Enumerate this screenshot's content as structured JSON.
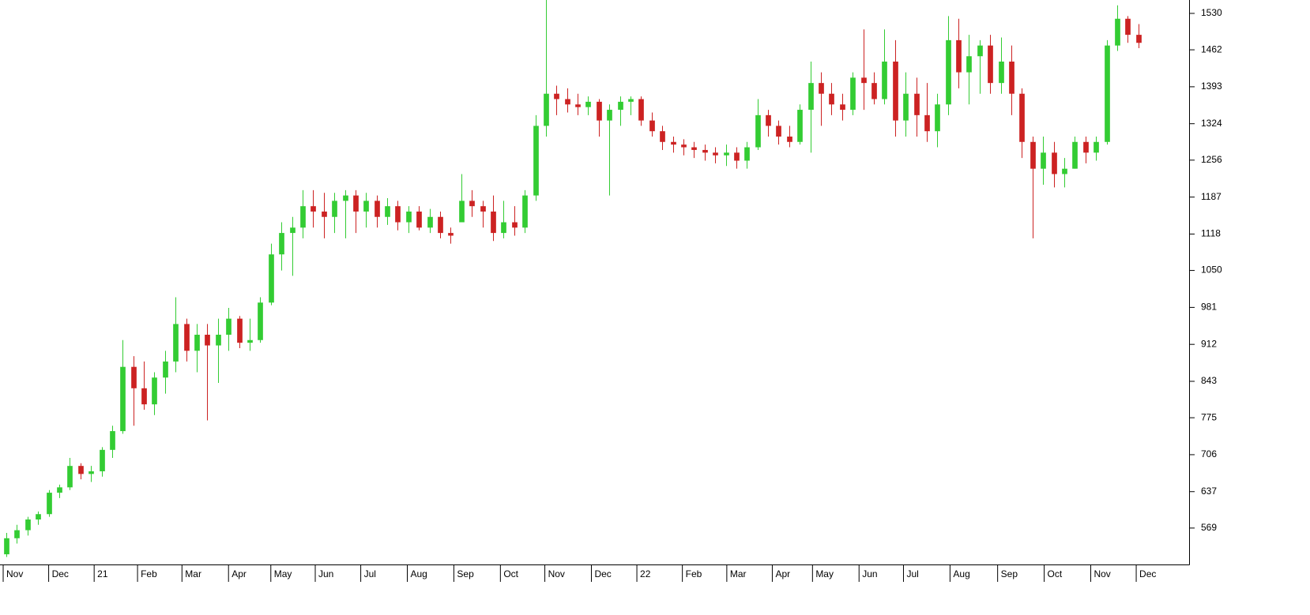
{
  "chart_data": {
    "type": "candlestick",
    "up_color": "#33cc33",
    "down_color": "#cc2222",
    "ylim": [
      501,
      1555
    ],
    "yticks": [
      569,
      637,
      706,
      775,
      843,
      912,
      981,
      1050,
      1118,
      1187,
      1256,
      1324,
      1393,
      1462,
      1530
    ],
    "xlim": [
      -0.6,
      111.8
    ],
    "xticks": [
      {
        "value": -0.3,
        "label": "Nov"
      },
      {
        "value": 4.0,
        "label": "Dec"
      },
      {
        "value": 8.3,
        "label": "21"
      },
      {
        "value": 12.4,
        "label": "Feb"
      },
      {
        "value": 16.6,
        "label": "Mar"
      },
      {
        "value": 21.0,
        "label": "Apr"
      },
      {
        "value": 25.0,
        "label": "May"
      },
      {
        "value": 29.2,
        "label": "Jun"
      },
      {
        "value": 33.5,
        "label": "Jul"
      },
      {
        "value": 37.9,
        "label": "Aug"
      },
      {
        "value": 42.3,
        "label": "Sep"
      },
      {
        "value": 46.7,
        "label": "Oct"
      },
      {
        "value": 50.9,
        "label": "Nov"
      },
      {
        "value": 55.3,
        "label": "Dec"
      },
      {
        "value": 59.6,
        "label": "22"
      },
      {
        "value": 63.9,
        "label": "Feb"
      },
      {
        "value": 68.1,
        "label": "Mar"
      },
      {
        "value": 72.4,
        "label": "Apr"
      },
      {
        "value": 76.2,
        "label": "May"
      },
      {
        "value": 80.6,
        "label": "Jun"
      },
      {
        "value": 84.8,
        "label": "Jul"
      },
      {
        "value": 89.2,
        "label": "Aug"
      },
      {
        "value": 93.7,
        "label": "Sep"
      },
      {
        "value": 98.1,
        "label": "Oct"
      },
      {
        "value": 102.5,
        "label": "Nov"
      },
      {
        "value": 106.8,
        "label": "Dec"
      }
    ],
    "open": [
      520,
      550,
      565,
      585,
      595,
      635,
      645,
      685,
      670,
      675,
      715,
      750,
      870,
      830,
      800,
      850,
      880,
      950,
      900,
      930,
      910,
      930,
      960,
      915,
      920,
      990,
      1080,
      1120,
      1130,
      1170,
      1160,
      1150,
      1180,
      1190,
      1160,
      1180,
      1150,
      1170,
      1140,
      1160,
      1130,
      1150,
      1120,
      1140,
      1180,
      1170,
      1160,
      1120,
      1140,
      1130,
      1190,
      1320,
      1380,
      1370,
      1360,
      1355,
      1365,
      1330,
      1350,
      1365,
      1370,
      1330,
      1310,
      1290,
      1285,
      1280,
      1275,
      1270,
      1265,
      1270,
      1255,
      1280,
      1340,
      1320,
      1300,
      1290,
      1350,
      1400,
      1380,
      1360,
      1350,
      1410,
      1400,
      1370,
      1440,
      1330,
      1380,
      1340,
      1310,
      1360,
      1480,
      1420,
      1450,
      1470,
      1400,
      1440,
      1380,
      1290,
      1240,
      1270,
      1230,
      1240,
      1290,
      1270,
      1290,
      1470,
      1520,
      1490
    ],
    "high": [
      560,
      575,
      590,
      600,
      640,
      650,
      700,
      690,
      685,
      720,
      760,
      920,
      890,
      880,
      860,
      900,
      1000,
      960,
      950,
      950,
      960,
      980,
      965,
      960,
      1000,
      1100,
      1140,
      1150,
      1200,
      1200,
      1195,
      1195,
      1200,
      1200,
      1195,
      1190,
      1185,
      1180,
      1170,
      1170,
      1165,
      1160,
      1130,
      1230,
      1200,
      1180,
      1190,
      1180,
      1170,
      1200,
      1340,
      1555,
      1395,
      1390,
      1380,
      1375,
      1370,
      1360,
      1375,
      1375,
      1375,
      1345,
      1320,
      1300,
      1295,
      1290,
      1285,
      1280,
      1285,
      1280,
      1290,
      1370,
      1350,
      1330,
      1320,
      1360,
      1440,
      1420,
      1400,
      1380,
      1420,
      1500,
      1420,
      1500,
      1480,
      1420,
      1410,
      1400,
      1380,
      1525,
      1520,
      1490,
      1480,
      1490,
      1485,
      1470,
      1390,
      1300,
      1300,
      1290,
      1260,
      1300,
      1300,
      1300,
      1480,
      1545,
      1525,
      1510
    ],
    "low": [
      515,
      540,
      555,
      575,
      590,
      625,
      640,
      660,
      655,
      665,
      700,
      745,
      760,
      790,
      780,
      820,
      860,
      880,
      860,
      770,
      840,
      900,
      905,
      900,
      915,
      985,
      1050,
      1040,
      1110,
      1130,
      1110,
      1120,
      1110,
      1120,
      1130,
      1130,
      1135,
      1125,
      1120,
      1125,
      1120,
      1110,
      1100,
      1140,
      1150,
      1130,
      1105,
      1110,
      1115,
      1120,
      1180,
      1300,
      1340,
      1345,
      1340,
      1340,
      1300,
      1190,
      1320,
      1340,
      1320,
      1300,
      1275,
      1270,
      1265,
      1260,
      1255,
      1250,
      1245,
      1240,
      1240,
      1275,
      1300,
      1285,
      1280,
      1285,
      1270,
      1320,
      1340,
      1330,
      1340,
      1350,
      1360,
      1360,
      1300,
      1300,
      1300,
      1290,
      1280,
      1340,
      1390,
      1360,
      1380,
      1380,
      1380,
      1340,
      1260,
      1110,
      1210,
      1205,
      1205,
      1240,
      1250,
      1255,
      1285,
      1460,
      1475,
      1465
    ],
    "close": [
      550,
      565,
      585,
      595,
      635,
      645,
      685,
      670,
      675,
      715,
      750,
      870,
      830,
      800,
      850,
      880,
      950,
      900,
      930,
      910,
      930,
      960,
      915,
      920,
      990,
      1080,
      1120,
      1130,
      1170,
      1160,
      1150,
      1180,
      1190,
      1160,
      1180,
      1150,
      1170,
      1140,
      1160,
      1130,
      1150,
      1120,
      1115,
      1180,
      1170,
      1160,
      1120,
      1140,
      1130,
      1190,
      1320,
      1380,
      1370,
      1360,
      1355,
      1365,
      1330,
      1350,
      1365,
      1370,
      1330,
      1310,
      1290,
      1285,
      1280,
      1275,
      1270,
      1265,
      1270,
      1255,
      1280,
      1340,
      1320,
      1300,
      1290,
      1350,
      1400,
      1380,
      1360,
      1350,
      1410,
      1400,
      1370,
      1440,
      1330,
      1380,
      1340,
      1310,
      1360,
      1480,
      1420,
      1450,
      1470,
      1400,
      1440,
      1380,
      1290,
      1240,
      1270,
      1230,
      1240,
      1290,
      1270,
      1290,
      1470,
      1520,
      1490,
      1475
    ]
  }
}
